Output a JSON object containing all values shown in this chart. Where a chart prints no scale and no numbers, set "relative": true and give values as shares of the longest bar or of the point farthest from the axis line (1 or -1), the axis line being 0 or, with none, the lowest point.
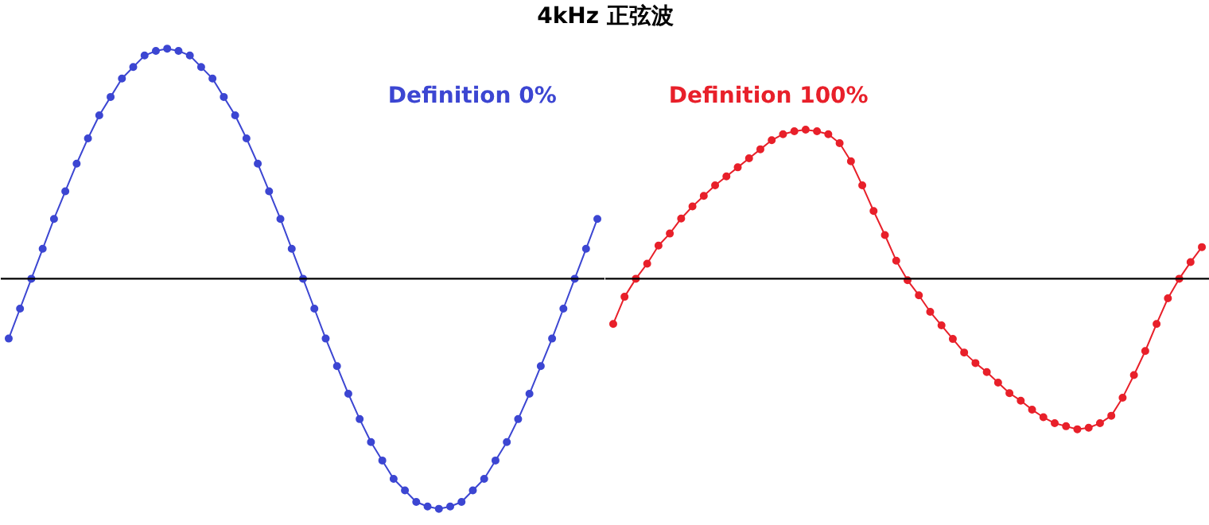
{
  "chart_data": [
    {
      "type": "line",
      "title": "4kHz 正弦波",
      "relative": true,
      "marker": "circle",
      "legend": false,
      "grid": false,
      "categories": [
        null,
        null,
        null,
        null,
        null,
        null,
        null,
        null,
        null,
        null,
        null,
        null,
        null,
        null,
        null,
        null,
        null,
        null,
        null,
        null,
        null,
        null,
        null,
        null,
        null,
        null,
        null,
        null,
        null,
        null,
        null,
        null,
        null,
        null,
        null,
        null,
        null,
        null,
        null,
        null,
        null,
        null,
        null,
        null,
        null,
        null,
        null,
        null,
        null,
        null,
        null,
        null,
        null
      ],
      "series": [
        {
          "name": "Definition 0%",
          "color": "#3c46d2",
          "values": [
            -0.26,
            -0.13,
            0,
            0.13,
            0.26,
            0.38,
            0.5,
            0.61,
            0.71,
            0.79,
            0.87,
            0.92,
            0.97,
            0.99,
            1,
            0.99,
            0.97,
            0.92,
            0.87,
            0.79,
            0.71,
            0.61,
            0.5,
            0.38,
            0.26,
            0.13,
            0,
            -0.13,
            -0.26,
            -0.38,
            -0.5,
            -0.61,
            -0.71,
            -0.79,
            -0.87,
            -0.92,
            -0.97,
            -0.99,
            -1,
            -0.99,
            -0.97,
            -0.92,
            -0.87,
            -0.79,
            -0.71,
            -0.61,
            -0.5,
            -0.38,
            -0.26,
            -0.13,
            0,
            0.13,
            0.26
          ]
        }
      ]
    },
    {
      "type": "line",
      "relative": true,
      "marker": "circle",
      "legend": false,
      "grid": false,
      "categories": [
        null,
        null,
        null,
        null,
        null,
        null,
        null,
        null,
        null,
        null,
        null,
        null,
        null,
        null,
        null,
        null,
        null,
        null,
        null,
        null,
        null,
        null,
        null,
        null,
        null,
        null,
        null,
        null,
        null,
        null,
        null,
        null,
        null,
        null,
        null,
        null,
        null,
        null,
        null,
        null,
        null,
        null,
        null,
        null,
        null,
        null,
        null,
        null,
        null,
        null,
        null,
        null,
        null
      ],
      "series": [
        {
          "name": "Definition 100%",
          "color": "#e8202a",
          "values": [
            -0.3,
            -0.12,
            0,
            0.1,
            0.22,
            0.3,
            0.4,
            0.48,
            0.55,
            0.62,
            0.68,
            0.74,
            0.8,
            0.86,
            0.92,
            0.96,
            0.98,
            0.99,
            0.98,
            0.96,
            0.9,
            0.78,
            0.62,
            0.45,
            0.29,
            0.12,
            -0.01,
            -0.11,
            -0.22,
            -0.31,
            -0.4,
            -0.49,
            -0.56,
            -0.62,
            -0.69,
            -0.76,
            -0.81,
            -0.87,
            -0.92,
            -0.96,
            -0.98,
            -1,
            -0.99,
            -0.96,
            -0.91,
            -0.79,
            -0.64,
            -0.48,
            -0.3,
            -0.13,
            0,
            0.11,
            0.21
          ]
        }
      ]
    }
  ]
}
